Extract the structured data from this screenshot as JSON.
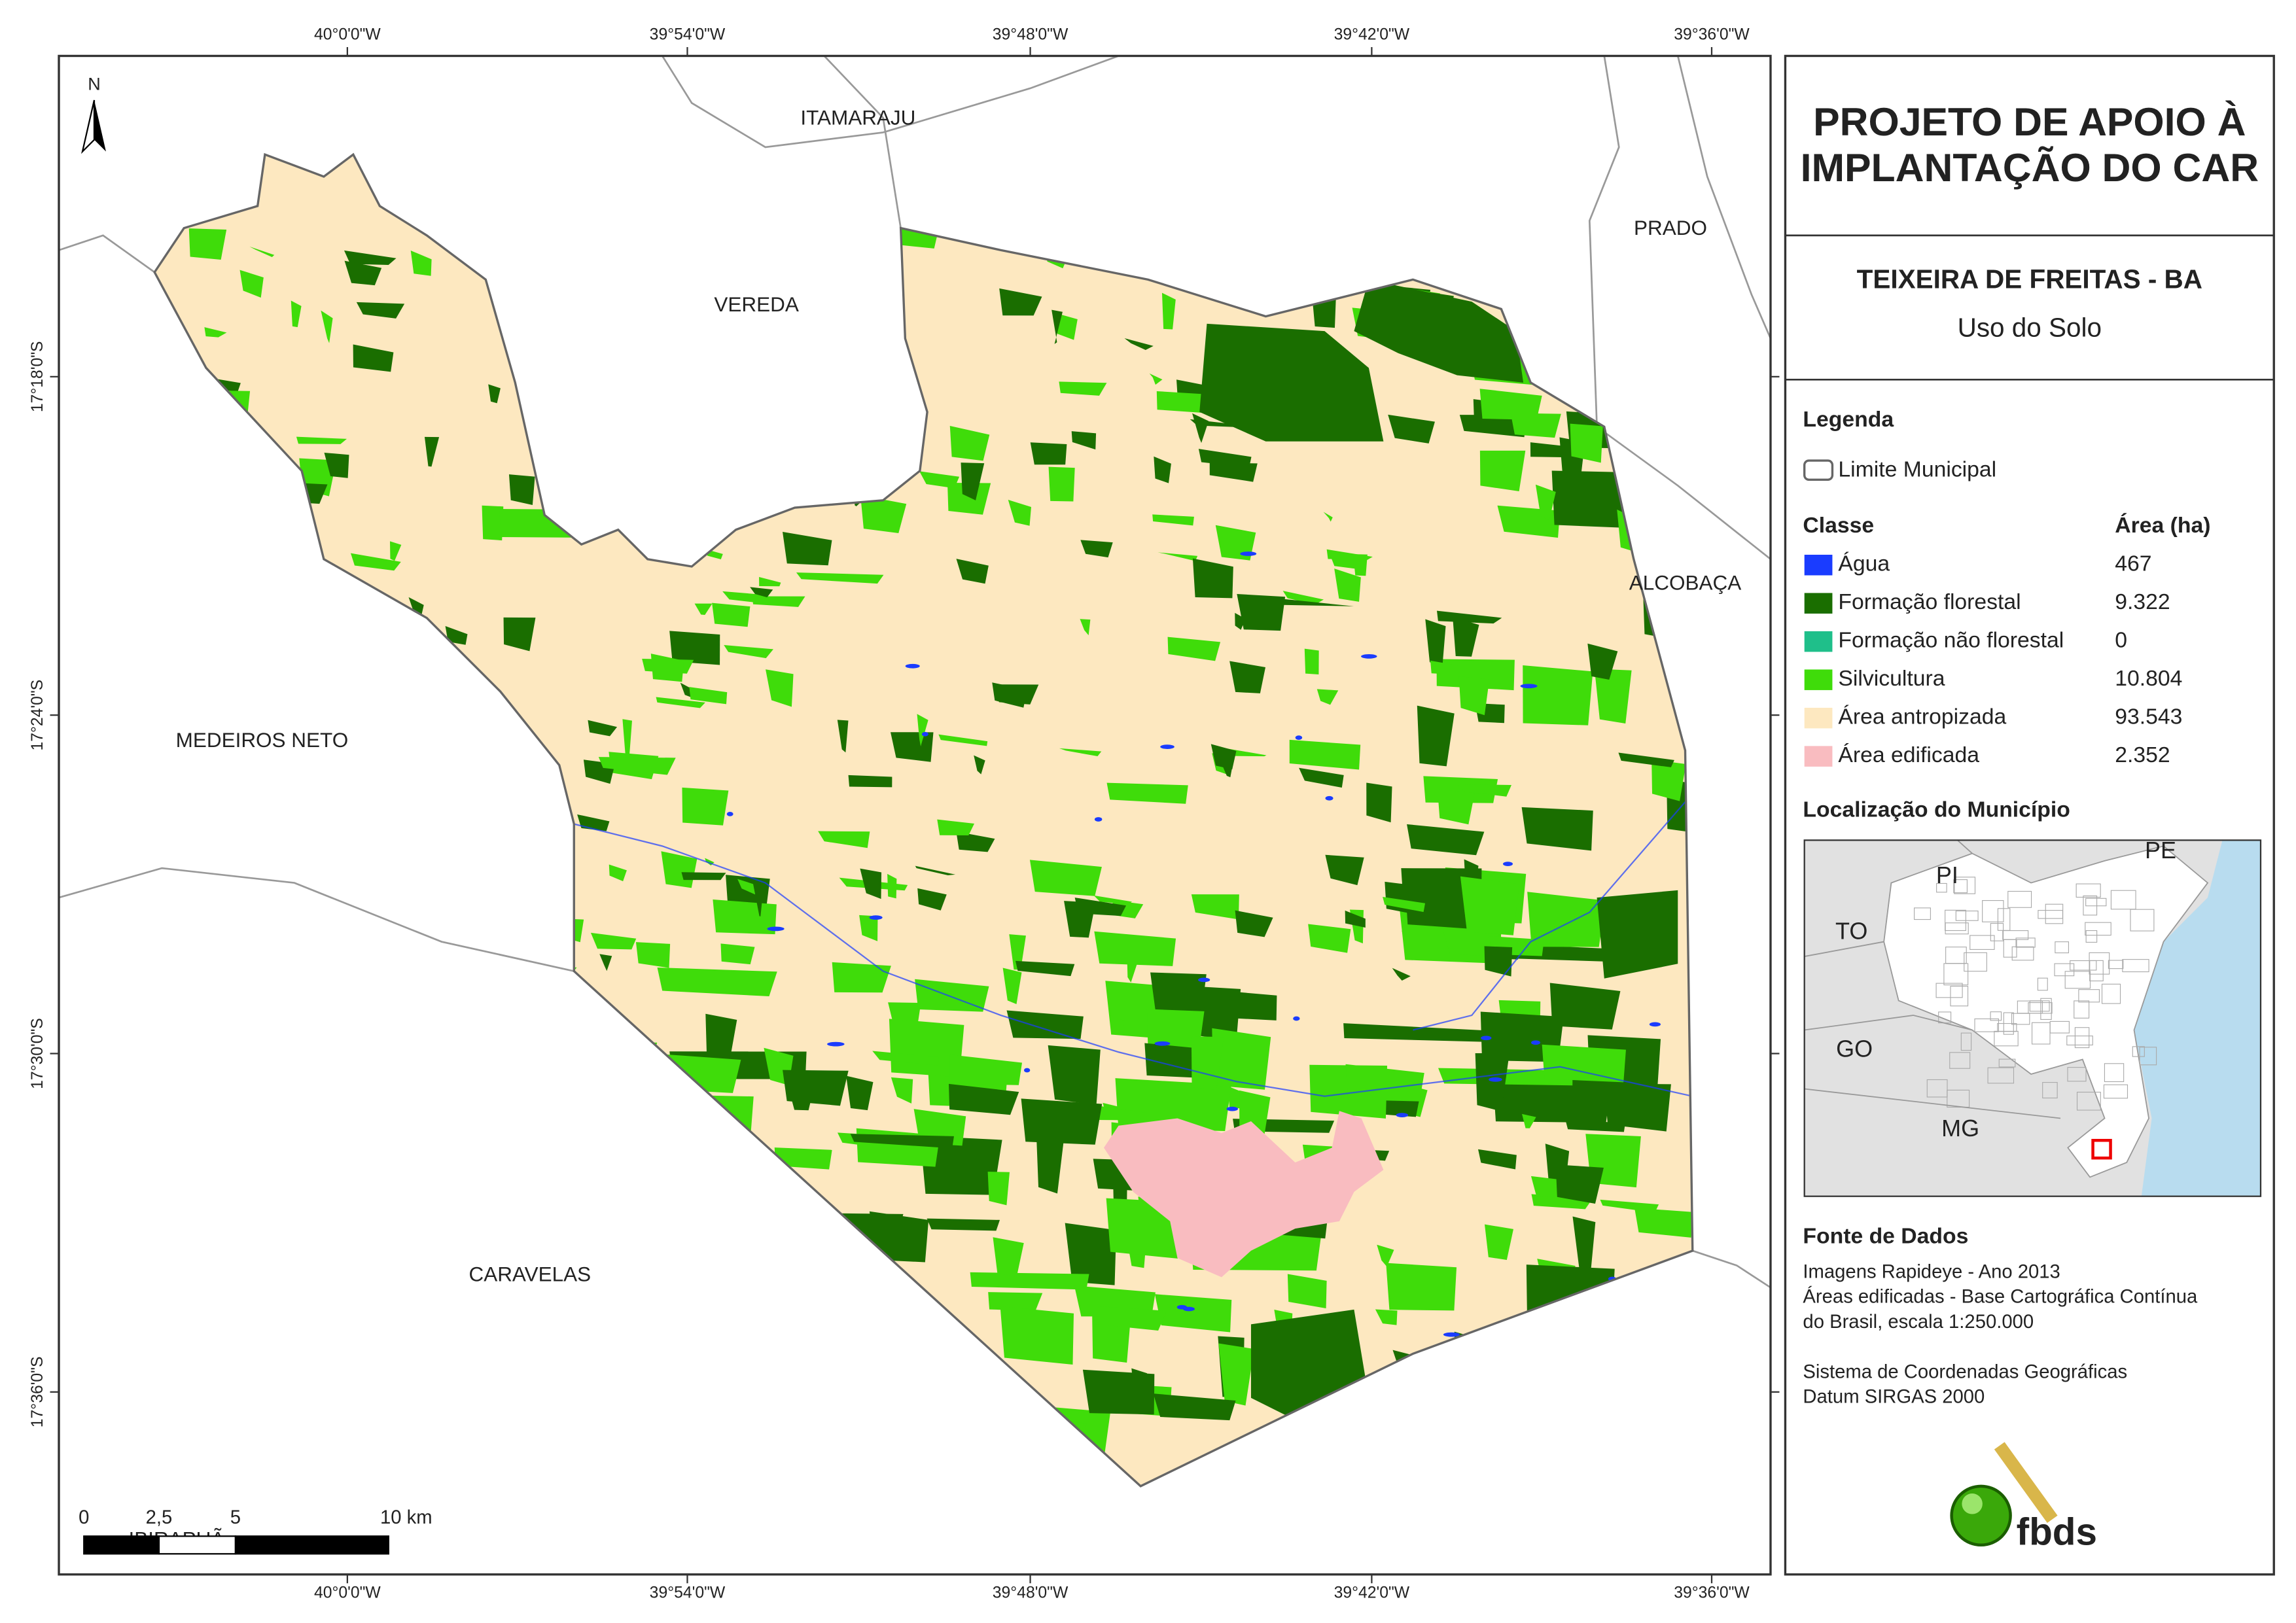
{
  "map": {
    "north": "N",
    "lon_labels": [
      "40°0'0\"W",
      "39°54'0\"W",
      "39°48'0\"W",
      "39°42'0\"W",
      "39°36'0\"W"
    ],
    "lat_labels": [
      "17°18'0\"S",
      "17°24'0\"S",
      "17°30'0\"S",
      "17°36'0\"S"
    ],
    "places": [
      "ITAMARAJU",
      "PRADO",
      "VEREDA",
      "ALCOBAÇA",
      "MEDEIROS NETO",
      "CARAVELAS",
      "IBIRAPUÃ"
    ],
    "scale_labels": [
      "0",
      "2,5",
      "5",
      "10 km"
    ]
  },
  "panel": {
    "title_lines": [
      "PROJETO DE APOIO À",
      "IMPLANTAÇÃO DO CAR"
    ],
    "subtitle": "TEIXEIRA DE FREITAS - BA",
    "theme": "Uso do Solo",
    "legend_title": "Legenda",
    "boundary": "Limite Municipal",
    "class_header": "Classe",
    "area_header": "Área (ha)",
    "classes": [
      {
        "name": "Água",
        "area": "467",
        "color": "#1a3cff"
      },
      {
        "name": "Formação florestal",
        "area": "9.322",
        "color": "#1a6e00"
      },
      {
        "name": "Formação não florestal",
        "area": "0",
        "color": "#1fbf8a"
      },
      {
        "name": "Silvicultura",
        "area": "10.804",
        "color": "#3fdc0a"
      },
      {
        "name": "Área antropizada",
        "area": "93.543",
        "color": "#fde8c0"
      },
      {
        "name": "Área edificada",
        "area": "2.352",
        "color": "#f9bcc0"
      }
    ],
    "location_title": "Localização do Município",
    "location_labels": [
      "PI",
      "PE",
      "TO",
      "GO",
      "MG"
    ],
    "sources_title": "Fonte de Dados",
    "sources": [
      "Imagens Rapideye - Ano 2013",
      "Áreas edificadas - Base Cartográfica Contínua",
      "do Brasil, escala 1:250.000",
      "",
      "Sistema de Coordenadas Geográficas",
      "Datum SIRGAS 2000"
    ],
    "logo": "fbds"
  }
}
